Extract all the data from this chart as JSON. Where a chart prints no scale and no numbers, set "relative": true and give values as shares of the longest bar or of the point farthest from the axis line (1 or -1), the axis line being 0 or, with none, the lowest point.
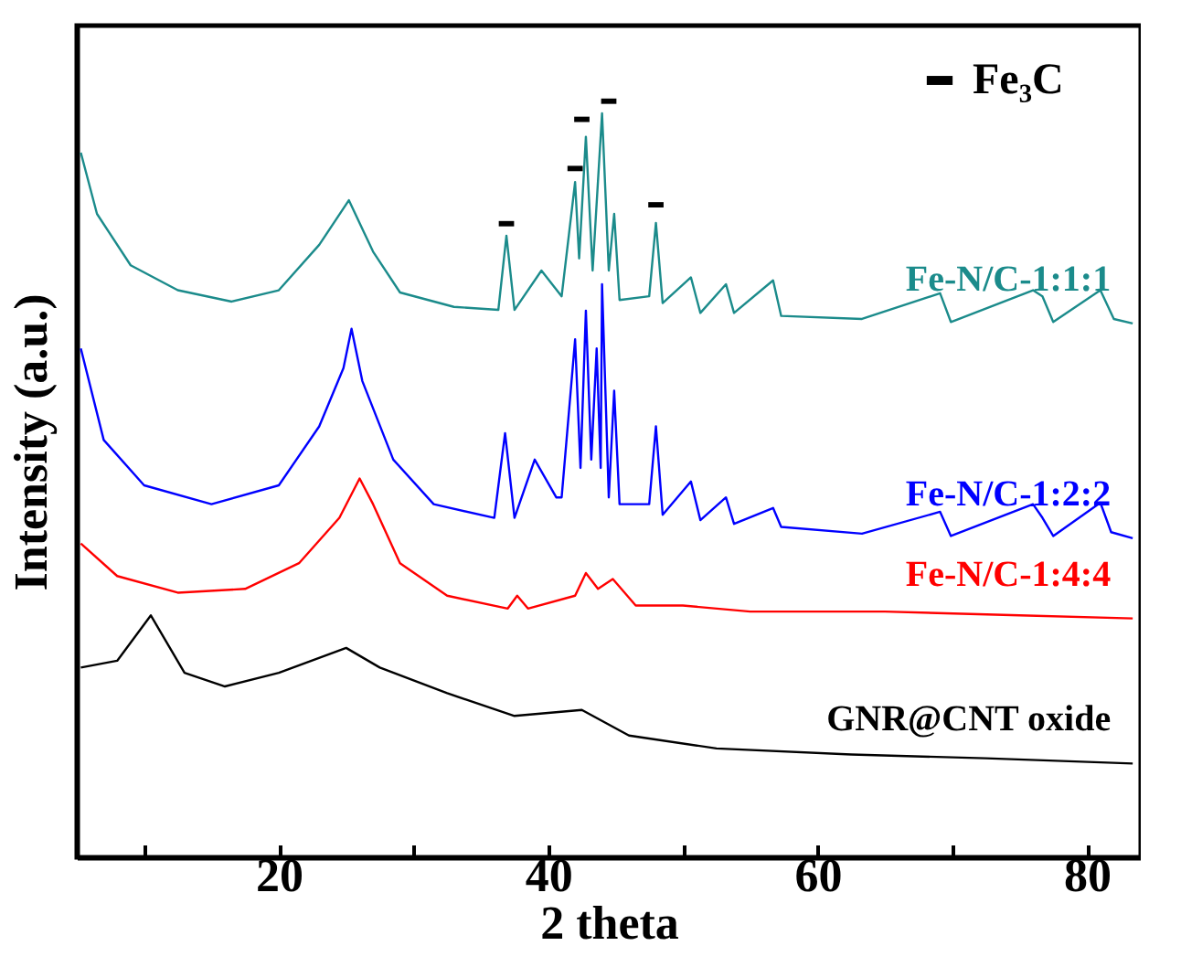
{
  "chart_data": {
    "type": "line",
    "xlabel": "2 theta",
    "ylabel": "Intensity (a.u.)",
    "relative": true,
    "xlim": [
      5,
      84
    ],
    "xticks": [
      {
        "value": 10,
        "label": null
      },
      20,
      {
        "value": 30,
        "label": null
      },
      40,
      {
        "value": 50,
        "label": null
      },
      60,
      {
        "value": 70,
        "label": null
      },
      80
    ],
    "legend": "top right",
    "line_style": "solid",
    "grid": false,
    "series": [
      {
        "name": "Fe-N/C-1:1:1",
        "color": "#1b8b8b",
        "x": [
          5.3,
          6.5,
          9,
          12.5,
          16.5,
          20,
          23,
          25.2,
          27,
          29,
          33,
          36.3,
          36.9,
          37.5,
          39.5,
          41,
          42,
          42.3,
          42.8,
          43.3,
          44,
          44.5,
          44.9,
          45.3,
          47.5,
          48,
          48.5,
          50.6,
          51.3,
          53.2,
          53.8,
          56.7,
          57.3,
          63.3,
          69.1,
          69.9,
          76,
          76.7,
          77.5,
          81,
          82,
          83.4
        ],
        "values": [
          0.932,
          0.851,
          0.783,
          0.75,
          0.735,
          0.75,
          0.81,
          0.869,
          0.801,
          0.747,
          0.728,
          0.724,
          0.822,
          0.724,
          0.776,
          0.742,
          0.893,
          0.792,
          0.953,
          0.776,
          0.984,
          0.776,
          0.851,
          0.737,
          0.742,
          0.839,
          0.733,
          0.767,
          0.72,
          0.758,
          0.72,
          0.763,
          0.716,
          0.712,
          0.746,
          0.708,
          0.75,
          0.742,
          0.708,
          0.75,
          0.712,
          0.706
        ]
      },
      {
        "name": "Fe-N/C-1:2:2",
        "color": "#0000ff",
        "x": [
          5.3,
          7,
          10,
          15,
          20,
          23,
          24.8,
          25.4,
          26.2,
          28.5,
          31.5,
          36,
          36.8,
          37.5,
          39,
          40.6,
          41,
          42,
          42.4,
          42.8,
          43.2,
          43.6,
          43.9,
          44,
          44.5,
          44.9,
          45.3,
          47.5,
          48,
          48.5,
          50.6,
          51.3,
          53.2,
          53.8,
          56.7,
          57.3,
          63.3,
          69.1,
          69.9,
          76,
          76.7,
          77.5,
          81,
          81.8,
          83.4
        ],
        "values": [
          0.673,
          0.552,
          0.492,
          0.467,
          0.492,
          0.57,
          0.647,
          0.699,
          0.63,
          0.526,
          0.467,
          0.449,
          0.561,
          0.449,
          0.526,
          0.476,
          0.476,
          0.685,
          0.515,
          0.723,
          0.526,
          0.673,
          0.515,
          0.758,
          0.476,
          0.617,
          0.467,
          0.467,
          0.57,
          0.453,
          0.497,
          0.446,
          0.476,
          0.441,
          0.462,
          0.437,
          0.428,
          0.457,
          0.425,
          0.467,
          0.449,
          0.425,
          0.469,
          0.43,
          0.422
        ]
      },
      {
        "name": "Fe-N/C-1:4:4",
        "color": "#ff0000",
        "x": [
          5.3,
          8,
          12.5,
          17.5,
          21.5,
          24.5,
          26,
          27,
          29,
          32.5,
          37,
          37.7,
          38.5,
          42,
          42.8,
          43.7,
          44.8,
          46.5,
          50,
          55,
          65,
          75,
          83.4
        ],
        "values": [
          0.415,
          0.372,
          0.35,
          0.355,
          0.389,
          0.449,
          0.501,
          0.467,
          0.389,
          0.346,
          0.329,
          0.346,
          0.329,
          0.346,
          0.376,
          0.355,
          0.368,
          0.333,
          0.333,
          0.325,
          0.325,
          0.32,
          0.316
        ]
      },
      {
        "name": "GNR@CNT oxide",
        "color": "#000000",
        "x": [
          5.3,
          8,
          10.5,
          13,
          16,
          20,
          25,
          27.5,
          32.5,
          37.5,
          42.5,
          46,
          52.5,
          62.5,
          72.5,
          83.4
        ],
        "values": [
          0.251,
          0.26,
          0.32,
          0.244,
          0.226,
          0.244,
          0.277,
          0.251,
          0.217,
          0.187,
          0.195,
          0.161,
          0.144,
          0.136,
          0.131,
          0.124
        ]
      },
      {
        "name": "Fe₃C",
        "type": "scatter",
        "marker": "square",
        "color": "#000000",
        "x": [
          36.9,
          42.0,
          42.5,
          44.5,
          48.0
        ],
        "values": [
          0.838,
          0.911,
          0.976,
          1.0,
          0.863
        ]
      }
    ]
  }
}
